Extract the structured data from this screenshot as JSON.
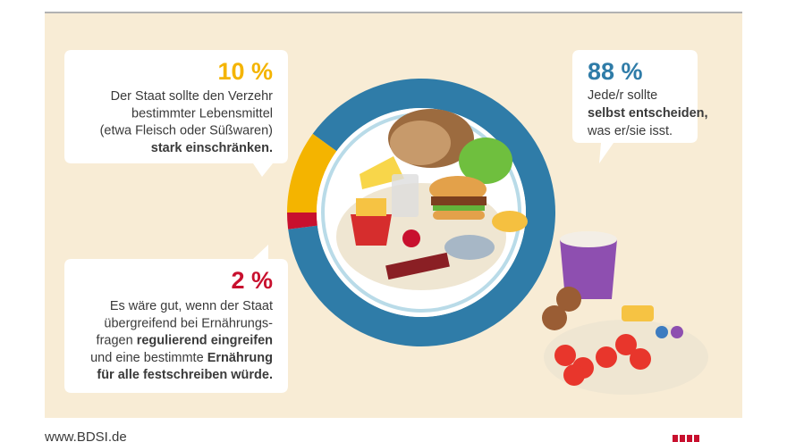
{
  "chart_data": {
    "type": "donut",
    "values": [
      88,
      2,
      10
    ],
    "value_labels": [
      "88 %",
      "2 %",
      "10 %"
    ],
    "colors": [
      "#2f7ca8",
      "#c8102e",
      "#f4b400"
    ],
    "descriptions": [
      [
        [
          {
            "text": "Jede/r sollte",
            "bold": false
          }
        ],
        [
          {
            "text": "selbst entscheiden,",
            "bold": true
          }
        ],
        [
          {
            "text": "was er/sie isst.",
            "bold": false
          }
        ]
      ],
      [
        [
          {
            "text": "Es wäre gut, wenn der Staat",
            "bold": false
          }
        ],
        [
          {
            "text": "übergreifend bei Ernährungs-",
            "bold": false
          }
        ],
        [
          {
            "text": "fragen ",
            "bold": false
          },
          {
            "text": "regulierend eingreifen",
            "bold": true
          }
        ],
        [
          {
            "text": "und eine bestimmte ",
            "bold": false
          },
          {
            "text": "Ernährung",
            "bold": true
          }
        ],
        [
          {
            "text": "für alle festschreiben würde.",
            "bold": true
          }
        ]
      ],
      [
        [
          {
            "text": "Der Staat sollte den Verzehr",
            "bold": false
          }
        ],
        [
          {
            "text": "bestimmter Lebensmittel",
            "bold": false
          }
        ],
        [
          {
            "text": "(etwa Fleisch oder Süßwaren)",
            "bold": false
          }
        ],
        [
          {
            "text": "stark einschränken.",
            "bold": true
          }
        ]
      ]
    ],
    "footer": "www.BDSI.de"
  }
}
